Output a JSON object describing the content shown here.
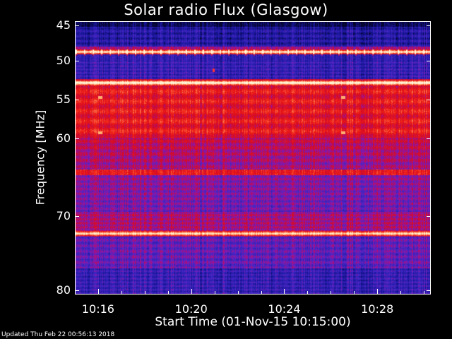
{
  "chart_data": {
    "type": "heatmap",
    "title": "Solar radio Flux (Glasgow)",
    "xlabel": "Start Time (01-Nov-15 10:15:00)",
    "ylabel": "Frequency [MHz]",
    "x_tick_labels": [
      "10:16",
      "10:20",
      "10:24",
      "10:28"
    ],
    "x_tick_minutes": [
      16,
      20,
      24,
      28
    ],
    "xlim_minutes": [
      15,
      30.3
    ],
    "y_tick_labels": [
      "45",
      "50",
      "55",
      "60",
      "70",
      "80"
    ],
    "y_tick_values": [
      45,
      50,
      55,
      60,
      70,
      80
    ],
    "ylim": [
      44.5,
      80
    ],
    "y_scale": "nonlinear (compressed toward high frequency)",
    "colormap": "blue-red-white (Glasgow spectrogram palette)",
    "colors": {
      "low": "#1e1ea0",
      "mid": "#e01414",
      "high": "#fff0c8"
    },
    "bright_bands_mhz": [
      48.7,
      52.8,
      72.3
    ],
    "strong_band_mhz": [
      [
        53,
        58
      ],
      [
        63.5,
        64
      ]
    ]
  },
  "footer": {
    "updated": "Updated Thu Feb 22 00:56:13 2018"
  }
}
